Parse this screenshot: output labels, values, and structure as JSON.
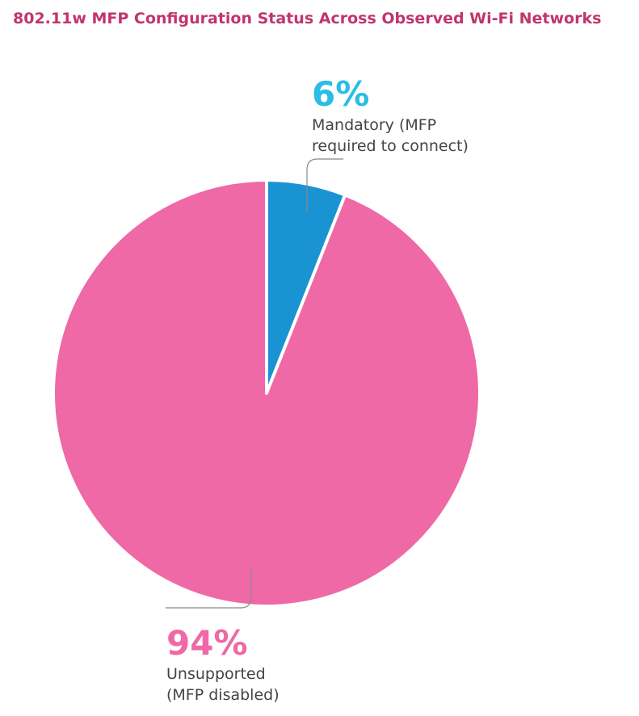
{
  "chart_data": {
    "type": "pie",
    "title": "802.11w MFP Configuration Status Across Observed Wi-Fi Networks",
    "categories": [
      "Mandatory (MFP required to connect)",
      "Unsupported (MFP disabled)"
    ],
    "values": [
      6,
      94
    ],
    "value_labels": [
      "6%",
      "94%"
    ],
    "colors": [
      "#1a93d3",
      "#ef69a6"
    ]
  }
}
